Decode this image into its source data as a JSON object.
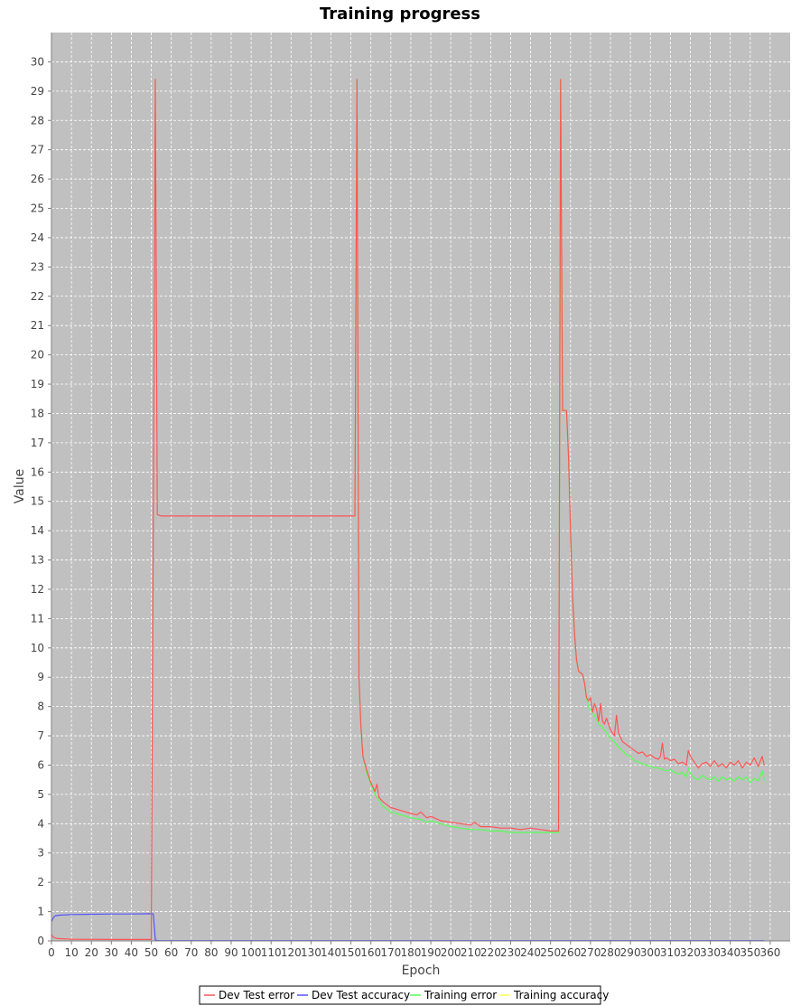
{
  "chart_data": {
    "type": "line",
    "title": "Training progress",
    "xlabel": "Epoch",
    "ylabel": "Value",
    "xlim": [
      0,
      370
    ],
    "ylim": [
      0,
      31
    ],
    "xticks": [
      0,
      10,
      20,
      30,
      40,
      50,
      60,
      70,
      80,
      90,
      100,
      110,
      120,
      130,
      140,
      150,
      160,
      170,
      180,
      190,
      200,
      210,
      220,
      230,
      240,
      250,
      260,
      270,
      280,
      290,
      300,
      310,
      320,
      330,
      340,
      350,
      360
    ],
    "yticks": [
      0,
      1,
      2,
      3,
      4,
      5,
      6,
      7,
      8,
      9,
      10,
      11,
      12,
      13,
      14,
      15,
      16,
      17,
      18,
      19,
      20,
      21,
      22,
      23,
      24,
      25,
      26,
      27,
      28,
      29,
      30
    ],
    "grid": true,
    "plot_background": "#C0C0C0",
    "legend_position": "bottom",
    "series": [
      {
        "name": "Dev Test error",
        "color": "#FF5555",
        "points": [
          [
            0,
            0.22
          ],
          [
            1,
            0.12
          ],
          [
            3,
            0.08
          ],
          [
            10,
            0.06
          ],
          [
            30,
            0.05
          ],
          [
            50,
            0.05
          ],
          [
            51,
            14.6
          ],
          [
            52,
            29.4
          ],
          [
            53,
            14.55
          ],
          [
            55,
            14.5
          ],
          [
            100,
            14.5
          ],
          [
            150,
            14.5
          ],
          [
            152,
            14.5
          ],
          [
            153,
            29.4
          ],
          [
            154,
            9.0
          ],
          [
            155,
            7.3
          ],
          [
            156,
            6.3
          ],
          [
            158,
            5.8
          ],
          [
            160,
            5.4
          ],
          [
            162,
            5.1
          ],
          [
            163,
            5.35
          ],
          [
            164,
            4.9
          ],
          [
            166,
            4.75
          ],
          [
            170,
            4.55
          ],
          [
            175,
            4.45
          ],
          [
            180,
            4.35
          ],
          [
            183,
            4.3
          ],
          [
            185,
            4.4
          ],
          [
            188,
            4.2
          ],
          [
            190,
            4.25
          ],
          [
            195,
            4.1
          ],
          [
            200,
            4.05
          ],
          [
            205,
            4.0
          ],
          [
            210,
            3.95
          ],
          [
            212,
            4.05
          ],
          [
            215,
            3.9
          ],
          [
            220,
            3.9
          ],
          [
            225,
            3.85
          ],
          [
            230,
            3.85
          ],
          [
            235,
            3.8
          ],
          [
            240,
            3.85
          ],
          [
            245,
            3.8
          ],
          [
            250,
            3.75
          ],
          [
            254,
            3.75
          ],
          [
            255,
            29.4
          ],
          [
            256,
            18.1
          ],
          [
            258,
            18.1
          ],
          [
            259,
            16.5
          ],
          [
            260,
            14.0
          ],
          [
            261,
            11.8
          ],
          [
            262,
            10.5
          ],
          [
            263,
            9.6
          ],
          [
            264,
            9.2
          ],
          [
            266,
            9.1
          ],
          [
            267,
            8.8
          ],
          [
            268,
            8.3
          ],
          [
            269,
            8.2
          ],
          [
            270,
            8.3
          ],
          [
            271,
            7.8
          ],
          [
            272,
            8.1
          ],
          [
            273,
            7.9
          ],
          [
            274,
            7.5
          ],
          [
            275,
            8.1
          ],
          [
            276,
            7.5
          ],
          [
            277,
            7.4
          ],
          [
            278,
            7.6
          ],
          [
            280,
            7.2
          ],
          [
            282,
            7.0
          ],
          [
            283,
            7.7
          ],
          [
            284,
            7.1
          ],
          [
            286,
            6.8
          ],
          [
            288,
            6.7
          ],
          [
            290,
            6.6
          ],
          [
            292,
            6.5
          ],
          [
            294,
            6.4
          ],
          [
            296,
            6.45
          ],
          [
            298,
            6.3
          ],
          [
            300,
            6.35
          ],
          [
            302,
            6.25
          ],
          [
            304,
            6.2
          ],
          [
            305,
            6.3
          ],
          [
            306,
            6.75
          ],
          [
            307,
            6.2
          ],
          [
            308,
            6.25
          ],
          [
            310,
            6.15
          ],
          [
            312,
            6.2
          ],
          [
            314,
            6.05
          ],
          [
            316,
            6.1
          ],
          [
            318,
            6.0
          ],
          [
            319,
            6.5
          ],
          [
            320,
            6.3
          ],
          [
            322,
            6.1
          ],
          [
            324,
            5.9
          ],
          [
            326,
            6.05
          ],
          [
            328,
            6.1
          ],
          [
            330,
            5.95
          ],
          [
            332,
            6.15
          ],
          [
            334,
            5.95
          ],
          [
            336,
            6.05
          ],
          [
            338,
            5.9
          ],
          [
            340,
            6.1
          ],
          [
            342,
            6.0
          ],
          [
            344,
            6.15
          ],
          [
            346,
            5.9
          ],
          [
            348,
            6.1
          ],
          [
            350,
            6.0
          ],
          [
            352,
            6.25
          ],
          [
            354,
            5.95
          ],
          [
            356,
            6.3
          ],
          [
            357,
            6.0
          ]
        ]
      },
      {
        "name": "Dev Test accuracy",
        "color": "#5555FF",
        "points": [
          [
            0,
            0.65
          ],
          [
            1,
            0.8
          ],
          [
            2,
            0.86
          ],
          [
            4,
            0.88
          ],
          [
            10,
            0.9
          ],
          [
            20,
            0.91
          ],
          [
            30,
            0.92
          ],
          [
            40,
            0.92
          ],
          [
            50,
            0.93
          ],
          [
            51,
            0.92
          ],
          [
            52,
            0.04
          ],
          [
            53,
            0.01
          ],
          [
            100,
            0.01
          ],
          [
            200,
            0.01
          ],
          [
            300,
            0.01
          ],
          [
            357,
            0.01
          ]
        ]
      },
      {
        "name": "Training error",
        "color": "#55FF55",
        "points": [
          [
            150,
            14.5
          ],
          [
            152,
            14.5
          ],
          [
            153,
            29.4
          ],
          [
            154,
            9.0
          ],
          [
            155,
            7.3
          ],
          [
            156,
            6.3
          ],
          [
            158,
            5.7
          ],
          [
            160,
            5.35
          ],
          [
            162,
            5.0
          ],
          [
            164,
            4.8
          ],
          [
            166,
            4.6
          ],
          [
            170,
            4.4
          ],
          [
            175,
            4.3
          ],
          [
            180,
            4.2
          ],
          [
            185,
            4.15
          ],
          [
            188,
            4.05
          ],
          [
            190,
            4.1
          ],
          [
            195,
            4.0
          ],
          [
            200,
            3.9
          ],
          [
            205,
            3.85
          ],
          [
            210,
            3.8
          ],
          [
            215,
            3.8
          ],
          [
            220,
            3.75
          ],
          [
            225,
            3.75
          ],
          [
            230,
            3.7
          ],
          [
            235,
            3.7
          ],
          [
            240,
            3.7
          ],
          [
            245,
            3.7
          ],
          [
            250,
            3.7
          ],
          [
            254,
            3.7
          ],
          [
            255,
            29.4
          ],
          [
            256,
            18.1
          ],
          [
            258,
            18.1
          ],
          [
            259,
            16.5
          ],
          [
            260,
            14.0
          ],
          [
            261,
            11.8
          ],
          [
            262,
            10.5
          ],
          [
            263,
            9.6
          ],
          [
            264,
            9.2
          ],
          [
            266,
            9.1
          ],
          [
            267,
            8.8
          ],
          [
            268,
            8.3
          ],
          [
            269,
            8.0
          ],
          [
            270,
            7.9
          ],
          [
            272,
            7.7
          ],
          [
            274,
            7.4
          ],
          [
            276,
            7.3
          ],
          [
            278,
            7.1
          ],
          [
            280,
            6.9
          ],
          [
            282,
            6.8
          ],
          [
            284,
            6.6
          ],
          [
            286,
            6.5
          ],
          [
            288,
            6.35
          ],
          [
            290,
            6.3
          ],
          [
            292,
            6.15
          ],
          [
            294,
            6.1
          ],
          [
            296,
            6.05
          ],
          [
            298,
            6.0
          ],
          [
            300,
            5.95
          ],
          [
            302,
            5.9
          ],
          [
            304,
            5.9
          ],
          [
            306,
            5.85
          ],
          [
            308,
            5.8
          ],
          [
            310,
            5.85
          ],
          [
            312,
            5.75
          ],
          [
            314,
            5.7
          ],
          [
            316,
            5.75
          ],
          [
            318,
            5.6
          ],
          [
            319,
            5.9
          ],
          [
            320,
            5.7
          ],
          [
            322,
            5.55
          ],
          [
            324,
            5.5
          ],
          [
            326,
            5.65
          ],
          [
            328,
            5.55
          ],
          [
            330,
            5.5
          ],
          [
            332,
            5.6
          ],
          [
            334,
            5.45
          ],
          [
            336,
            5.6
          ],
          [
            338,
            5.5
          ],
          [
            340,
            5.55
          ],
          [
            342,
            5.45
          ],
          [
            344,
            5.6
          ],
          [
            346,
            5.5
          ],
          [
            348,
            5.6
          ],
          [
            350,
            5.4
          ],
          [
            352,
            5.55
          ],
          [
            354,
            5.45
          ],
          [
            356,
            5.8
          ],
          [
            357,
            5.5
          ]
        ]
      },
      {
        "name": "Training accuracy",
        "color": "#FFFF55",
        "points": []
      }
    ]
  }
}
